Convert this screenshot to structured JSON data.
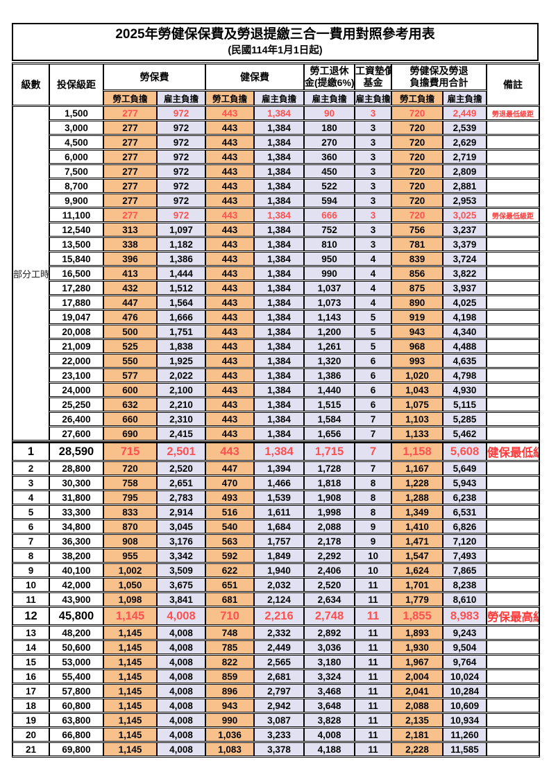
{
  "title": {
    "main": "2025年勞健保保費及勞退提繳三合一費用對照參考用表",
    "sub": "(民國114年1月1日起)"
  },
  "colors": {
    "employee_fill": "#F8C18C",
    "employer_fill": "#E2E1F2",
    "highlight_red": "#FF5050",
    "note_red": "#FF3B3B",
    "border": "#000000"
  },
  "table": {
    "headers": {
      "level": "級數",
      "bracket": "投保級距",
      "labor": "勞保費",
      "health": "健保費",
      "pension_line1": "勞工退休",
      "pension_line2": "金(提繳6%)",
      "fund_line1": "工資墊償",
      "fund_line2": "基金",
      "total_line1": "勞健保及勞退",
      "total_line2": "負擔費用合計",
      "note": "備註",
      "employee": "勞工負擔",
      "employer": "雇主負擔"
    },
    "part_time_label": "部分工時",
    "part_time_rowspan": 23,
    "rows": [
      {
        "level": "",
        "bracket": "1,500",
        "labor_emp": "277",
        "labor_er": "972",
        "health_emp": "443",
        "health_er": "1,384",
        "pension_er": "90",
        "fund_er": "3",
        "total_emp": "720",
        "total_er": "2,449",
        "note": "勞退最低級距",
        "red": true
      },
      {
        "level": "",
        "bracket": "3,000",
        "labor_emp": "277",
        "labor_er": "972",
        "health_emp": "443",
        "health_er": "1,384",
        "pension_er": "180",
        "fund_er": "3",
        "total_emp": "720",
        "total_er": "2,539",
        "note": ""
      },
      {
        "level": "",
        "bracket": "4,500",
        "labor_emp": "277",
        "labor_er": "972",
        "health_emp": "443",
        "health_er": "1,384",
        "pension_er": "270",
        "fund_er": "3",
        "total_emp": "720",
        "total_er": "2,629",
        "note": ""
      },
      {
        "level": "",
        "bracket": "6,000",
        "labor_emp": "277",
        "labor_er": "972",
        "health_emp": "443",
        "health_er": "1,384",
        "pension_er": "360",
        "fund_er": "3",
        "total_emp": "720",
        "total_er": "2,719",
        "note": ""
      },
      {
        "level": "",
        "bracket": "7,500",
        "labor_emp": "277",
        "labor_er": "972",
        "health_emp": "443",
        "health_er": "1,384",
        "pension_er": "450",
        "fund_er": "3",
        "total_emp": "720",
        "total_er": "2,809",
        "note": ""
      },
      {
        "level": "",
        "bracket": "8,700",
        "labor_emp": "277",
        "labor_er": "972",
        "health_emp": "443",
        "health_er": "1,384",
        "pension_er": "522",
        "fund_er": "3",
        "total_emp": "720",
        "total_er": "2,881",
        "note": ""
      },
      {
        "level": "",
        "bracket": "9,900",
        "labor_emp": "277",
        "labor_er": "972",
        "health_emp": "443",
        "health_er": "1,384",
        "pension_er": "594",
        "fund_er": "3",
        "total_emp": "720",
        "total_er": "2,953",
        "note": ""
      },
      {
        "level": "",
        "bracket": "11,100",
        "labor_emp": "277",
        "labor_er": "972",
        "health_emp": "443",
        "health_er": "1,384",
        "pension_er": "666",
        "fund_er": "3",
        "total_emp": "720",
        "total_er": "3,025",
        "note": "勞保最低級距",
        "red": true
      },
      {
        "level": "",
        "bracket": "12,540",
        "labor_emp": "313",
        "labor_er": "1,097",
        "health_emp": "443",
        "health_er": "1,384",
        "pension_er": "752",
        "fund_er": "3",
        "total_emp": "756",
        "total_er": "3,237",
        "note": ""
      },
      {
        "level": "",
        "bracket": "13,500",
        "labor_emp": "338",
        "labor_er": "1,182",
        "health_emp": "443",
        "health_er": "1,384",
        "pension_er": "810",
        "fund_er": "3",
        "total_emp": "781",
        "total_er": "3,379",
        "note": ""
      },
      {
        "level": "",
        "bracket": "15,840",
        "labor_emp": "396",
        "labor_er": "1,386",
        "health_emp": "443",
        "health_er": "1,384",
        "pension_er": "950",
        "fund_er": "4",
        "total_emp": "839",
        "total_er": "3,724",
        "note": ""
      },
      {
        "level": "",
        "bracket": "16,500",
        "labor_emp": "413",
        "labor_er": "1,444",
        "health_emp": "443",
        "health_er": "1,384",
        "pension_er": "990",
        "fund_er": "4",
        "total_emp": "856",
        "total_er": "3,822",
        "note": ""
      },
      {
        "level": "",
        "bracket": "17,280",
        "labor_emp": "432",
        "labor_er": "1,512",
        "health_emp": "443",
        "health_er": "1,384",
        "pension_er": "1,037",
        "fund_er": "4",
        "total_emp": "875",
        "total_er": "3,937",
        "note": ""
      },
      {
        "level": "",
        "bracket": "17,880",
        "labor_emp": "447",
        "labor_er": "1,564",
        "health_emp": "443",
        "health_er": "1,384",
        "pension_er": "1,073",
        "fund_er": "4",
        "total_emp": "890",
        "total_er": "4,025",
        "note": ""
      },
      {
        "level": "",
        "bracket": "19,047",
        "labor_emp": "476",
        "labor_er": "1,666",
        "health_emp": "443",
        "health_er": "1,384",
        "pension_er": "1,143",
        "fund_er": "5",
        "total_emp": "919",
        "total_er": "4,198",
        "note": ""
      },
      {
        "level": "",
        "bracket": "20,008",
        "labor_emp": "500",
        "labor_er": "1,751",
        "health_emp": "443",
        "health_er": "1,384",
        "pension_er": "1,200",
        "fund_er": "5",
        "total_emp": "943",
        "total_er": "4,340",
        "note": ""
      },
      {
        "level": "",
        "bracket": "21,009",
        "labor_emp": "525",
        "labor_er": "1,838",
        "health_emp": "443",
        "health_er": "1,384",
        "pension_er": "1,261",
        "fund_er": "5",
        "total_emp": "968",
        "total_er": "4,488",
        "note": ""
      },
      {
        "level": "",
        "bracket": "22,000",
        "labor_emp": "550",
        "labor_er": "1,925",
        "health_emp": "443",
        "health_er": "1,384",
        "pension_er": "1,320",
        "fund_er": "6",
        "total_emp": "993",
        "total_er": "4,635",
        "note": ""
      },
      {
        "level": "",
        "bracket": "23,100",
        "labor_emp": "577",
        "labor_er": "2,022",
        "health_emp": "443",
        "health_er": "1,384",
        "pension_er": "1,386",
        "fund_er": "6",
        "total_emp": "1,020",
        "total_er": "4,798",
        "note": ""
      },
      {
        "level": "",
        "bracket": "24,000",
        "labor_emp": "600",
        "labor_er": "2,100",
        "health_emp": "443",
        "health_er": "1,384",
        "pension_er": "1,440",
        "fund_er": "6",
        "total_emp": "1,043",
        "total_er": "4,930",
        "note": ""
      },
      {
        "level": "",
        "bracket": "25,250",
        "labor_emp": "632",
        "labor_er": "2,210",
        "health_emp": "443",
        "health_er": "1,384",
        "pension_er": "1,515",
        "fund_er": "6",
        "total_emp": "1,075",
        "total_er": "5,115",
        "note": ""
      },
      {
        "level": "",
        "bracket": "26,400",
        "labor_emp": "660",
        "labor_er": "2,310",
        "health_emp": "443",
        "health_er": "1,384",
        "pension_er": "1,584",
        "fund_er": "7",
        "total_emp": "1,103",
        "total_er": "5,285",
        "note": ""
      },
      {
        "level": "",
        "bracket": "27,600",
        "labor_emp": "690",
        "labor_er": "2,415",
        "health_emp": "443",
        "health_er": "1,384",
        "pension_er": "1,656",
        "fund_er": "7",
        "total_emp": "1,133",
        "total_er": "5,462",
        "note": ""
      },
      {
        "level": "1",
        "bracket": "28,590",
        "labor_emp": "715",
        "labor_er": "2,501",
        "health_emp": "443",
        "health_er": "1,384",
        "pension_er": "1,715",
        "fund_er": "7",
        "total_emp": "1,158",
        "total_er": "5,608",
        "note": "健保最低級距",
        "red": true,
        "big": true,
        "thick_top": true
      },
      {
        "level": "2",
        "bracket": "28,800",
        "labor_emp": "720",
        "labor_er": "2,520",
        "health_emp": "447",
        "health_er": "1,394",
        "pension_er": "1,728",
        "fund_er": "7",
        "total_emp": "1,167",
        "total_er": "5,649",
        "note": ""
      },
      {
        "level": "3",
        "bracket": "30,300",
        "labor_emp": "758",
        "labor_er": "2,651",
        "health_emp": "470",
        "health_er": "1,466",
        "pension_er": "1,818",
        "fund_er": "8",
        "total_emp": "1,228",
        "total_er": "5,943",
        "note": ""
      },
      {
        "level": "4",
        "bracket": "31,800",
        "labor_emp": "795",
        "labor_er": "2,783",
        "health_emp": "493",
        "health_er": "1,539",
        "pension_er": "1,908",
        "fund_er": "8",
        "total_emp": "1,288",
        "total_er": "6,238",
        "note": ""
      },
      {
        "level": "5",
        "bracket": "33,300",
        "labor_emp": "833",
        "labor_er": "2,914",
        "health_emp": "516",
        "health_er": "1,611",
        "pension_er": "1,998",
        "fund_er": "8",
        "total_emp": "1,349",
        "total_er": "6,531",
        "note": ""
      },
      {
        "level": "6",
        "bracket": "34,800",
        "labor_emp": "870",
        "labor_er": "3,045",
        "health_emp": "540",
        "health_er": "1,684",
        "pension_er": "2,088",
        "fund_er": "9",
        "total_emp": "1,410",
        "total_er": "6,826",
        "note": ""
      },
      {
        "level": "7",
        "bracket": "36,300",
        "labor_emp": "908",
        "labor_er": "3,176",
        "health_emp": "563",
        "health_er": "1,757",
        "pension_er": "2,178",
        "fund_er": "9",
        "total_emp": "1,471",
        "total_er": "7,120",
        "note": ""
      },
      {
        "level": "8",
        "bracket": "38,200",
        "labor_emp": "955",
        "labor_er": "3,342",
        "health_emp": "592",
        "health_er": "1,849",
        "pension_er": "2,292",
        "fund_er": "10",
        "total_emp": "1,547",
        "total_er": "7,493",
        "note": ""
      },
      {
        "level": "9",
        "bracket": "40,100",
        "labor_emp": "1,002",
        "labor_er": "3,509",
        "health_emp": "622",
        "health_er": "1,940",
        "pension_er": "2,406",
        "fund_er": "10",
        "total_emp": "1,624",
        "total_er": "7,865",
        "note": ""
      },
      {
        "level": "10",
        "bracket": "42,000",
        "labor_emp": "1,050",
        "labor_er": "3,675",
        "health_emp": "651",
        "health_er": "2,032",
        "pension_er": "2,520",
        "fund_er": "11",
        "total_emp": "1,701",
        "total_er": "8,238",
        "note": ""
      },
      {
        "level": "11",
        "bracket": "43,900",
        "labor_emp": "1,098",
        "labor_er": "3,841",
        "health_emp": "681",
        "health_er": "2,124",
        "pension_er": "2,634",
        "fund_er": "11",
        "total_emp": "1,779",
        "total_er": "8,610",
        "note": ""
      },
      {
        "level": "12",
        "bracket": "45,800",
        "labor_emp": "1,145",
        "labor_er": "4,008",
        "health_emp": "710",
        "health_er": "2,216",
        "pension_er": "2,748",
        "fund_er": "11",
        "total_emp": "1,855",
        "total_er": "8,983",
        "note": "勞保最高級距",
        "red": true,
        "big": true
      },
      {
        "level": "13",
        "bracket": "48,200",
        "labor_emp": "1,145",
        "labor_er": "4,008",
        "health_emp": "748",
        "health_er": "2,332",
        "pension_er": "2,892",
        "fund_er": "11",
        "total_emp": "1,893",
        "total_er": "9,243",
        "note": ""
      },
      {
        "level": "14",
        "bracket": "50,600",
        "labor_emp": "1,145",
        "labor_er": "4,008",
        "health_emp": "785",
        "health_er": "2,449",
        "pension_er": "3,036",
        "fund_er": "11",
        "total_emp": "1,930",
        "total_er": "9,504",
        "note": ""
      },
      {
        "level": "15",
        "bracket": "53,000",
        "labor_emp": "1,145",
        "labor_er": "4,008",
        "health_emp": "822",
        "health_er": "2,565",
        "pension_er": "3,180",
        "fund_er": "11",
        "total_emp": "1,967",
        "total_er": "9,764",
        "note": ""
      },
      {
        "level": "16",
        "bracket": "55,400",
        "labor_emp": "1,145",
        "labor_er": "4,008",
        "health_emp": "859",
        "health_er": "2,681",
        "pension_er": "3,324",
        "fund_er": "11",
        "total_emp": "2,004",
        "total_er": "10,024",
        "note": ""
      },
      {
        "level": "17",
        "bracket": "57,800",
        "labor_emp": "1,145",
        "labor_er": "4,008",
        "health_emp": "896",
        "health_er": "2,797",
        "pension_er": "3,468",
        "fund_er": "11",
        "total_emp": "2,041",
        "total_er": "10,284",
        "note": ""
      },
      {
        "level": "18",
        "bracket": "60,800",
        "labor_emp": "1,145",
        "labor_er": "4,008",
        "health_emp": "943",
        "health_er": "2,942",
        "pension_er": "3,648",
        "fund_er": "11",
        "total_emp": "2,088",
        "total_er": "10,609",
        "note": ""
      },
      {
        "level": "19",
        "bracket": "63,800",
        "labor_emp": "1,145",
        "labor_er": "4,008",
        "health_emp": "990",
        "health_er": "3,087",
        "pension_er": "3,828",
        "fund_er": "11",
        "total_emp": "2,135",
        "total_er": "10,934",
        "note": ""
      },
      {
        "level": "20",
        "bracket": "66,800",
        "labor_emp": "1,145",
        "labor_er": "4,008",
        "health_emp": "1,036",
        "health_er": "3,233",
        "pension_er": "4,008",
        "fund_er": "11",
        "total_emp": "2,181",
        "total_er": "11,260",
        "note": ""
      },
      {
        "level": "21",
        "bracket": "69,800",
        "labor_emp": "1,145",
        "labor_er": "4,008",
        "health_emp": "1,083",
        "health_er": "3,378",
        "pension_er": "4,188",
        "fund_er": "11",
        "total_emp": "2,228",
        "total_er": "11,585",
        "note": ""
      }
    ]
  }
}
